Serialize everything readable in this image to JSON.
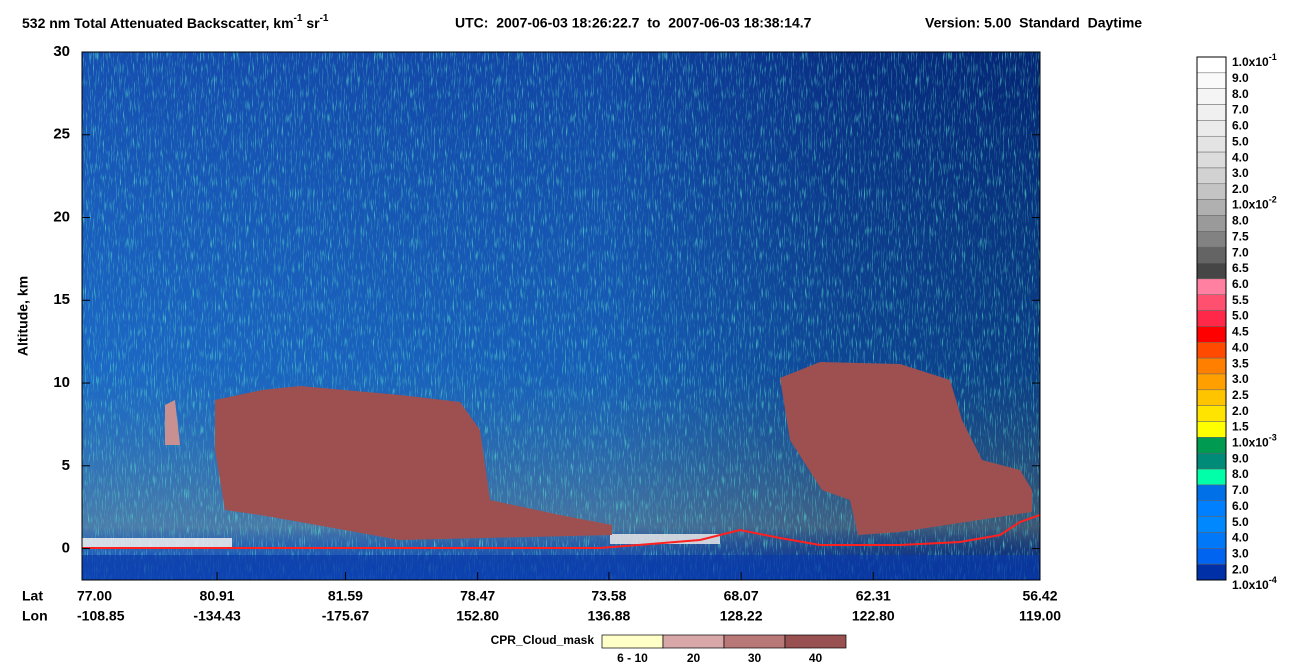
{
  "chart_data": {
    "type": "heatmap",
    "title": {
      "text": "532 nm Total Attenuated Backscatter, km",
      "exp1": "-1",
      "unit2": " sr",
      "exp2": "-1",
      "utc": "UTC:  2007-06-03 18:26:22.7  to  2007-06-03 18:38:14.7",
      "version": "Version: 5.00  Standard  Daytime"
    },
    "ylabel": "Altitude, km",
    "ylim": [
      -1.9,
      30
    ],
    "yticks": [
      0,
      5,
      10,
      15,
      20,
      25,
      30
    ],
    "x_row_labels": [
      "Lat",
      "Lon"
    ],
    "lat": [
      "77.00",
      "80.91",
      "81.59",
      "78.47",
      "73.58",
      "68.07",
      "62.31",
      "56.42"
    ],
    "lon": [
      "-108.85",
      "-134.43",
      "-175.67",
      "152.80",
      "136.88",
      "128.22",
      "122.80",
      "119.00"
    ],
    "colorbar": {
      "labels": [
        {
          "base": "1.0x10",
          "exp": "-1"
        },
        "9.0",
        "8.0",
        "7.0",
        "6.0",
        "5.0",
        "4.0",
        "3.0",
        "2.0",
        {
          "base": "1.0x10",
          "exp": "-2"
        },
        "8.0",
        "7.5",
        "7.0",
        "6.5",
        "6.0",
        "5.5",
        "5.0",
        "4.5",
        "4.0",
        "3.5",
        "3.0",
        "2.5",
        "2.0",
        "1.5",
        {
          "base": "1.0x10",
          "exp": "-3"
        },
        "9.0",
        "8.0",
        "7.0",
        "6.0",
        "5.0",
        "4.0",
        "3.0",
        "2.0",
        {
          "base": "1.0x10",
          "exp": "-4"
        }
      ],
      "colors": [
        "#ffffff",
        "#fafafa",
        "#f5f5f5",
        "#f0f0f0",
        "#ebebeb",
        "#e4e4e4",
        "#dcdcdc",
        "#d2d2d2",
        "#c4c4c4",
        "#b0b0b0",
        "#9a9a9a",
        "#828282",
        "#646464",
        "#464646",
        "#ff80a0",
        "#ff5070",
        "#ff2848",
        "#ff0000",
        "#ff4a00",
        "#ff8000",
        "#ffa000",
        "#ffc400",
        "#ffe400",
        "#ffff00",
        "#009a50",
        "#008a78",
        "#00ffa8",
        "#0070e8",
        "#0080ff",
        "#0088ff",
        "#0078f8",
        "#0064f0",
        "#0030a8",
        "#002488"
      ]
    },
    "cloud_mask": {
      "label": "CPR_Cloud_mask",
      "categories": [
        "6 - 10",
        "20",
        "30",
        "40"
      ],
      "colors": [
        "#ffffc8",
        "#d8a8a8",
        "#b87878",
        "#985050"
      ]
    }
  }
}
